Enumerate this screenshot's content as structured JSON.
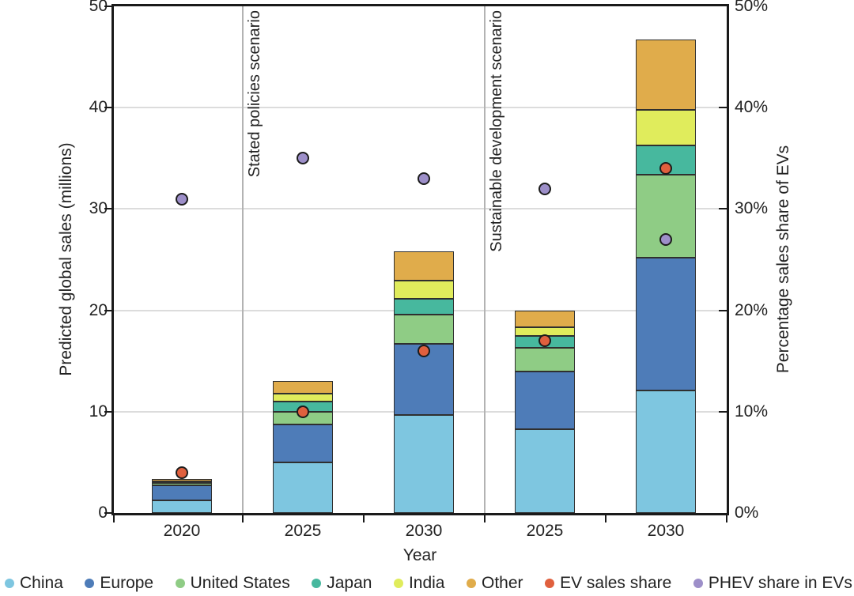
{
  "figure": {
    "left_axis": {
      "title": "Predicted global sales (millions)",
      "tick_labels": [
        "0",
        "10",
        "20",
        "30",
        "40",
        "50"
      ],
      "tick_values": [
        0,
        10,
        20,
        30,
        40,
        50
      ]
    },
    "right_axis": {
      "title": "Percentage sales share of EVs",
      "tick_labels": [
        "0%",
        "10%",
        "20%",
        "30%",
        "40%",
        "50%"
      ],
      "tick_values": [
        0,
        10,
        20,
        30,
        40,
        50
      ]
    },
    "x_axis": {
      "title": "Year",
      "labels": [
        "2020",
        "2025",
        "2030",
        "2025",
        "2030"
      ]
    },
    "scenarios": [
      {
        "label": "Stated policies scenario"
      },
      {
        "label": "Sustainable development scenario"
      }
    ]
  },
  "chart_data": {
    "type": "bar",
    "stacked": true,
    "title": "",
    "xlabel": "Year",
    "ylabel_left": "Predicted global sales (millions)",
    "ylabel_right": "Percentage sales share of EVs",
    "ylim": [
      0,
      50
    ],
    "y2lim_percent": [
      0,
      50
    ],
    "grid": true,
    "legend_position": "bottom",
    "categories": [
      "2020",
      "2025",
      "2030",
      "2025",
      "2030"
    ],
    "scenario_bands": [
      {
        "label": "Stated policies scenario",
        "categories": [
          "2025",
          "2030"
        ]
      },
      {
        "label": "Sustainable development scenario",
        "categories": [
          "2025",
          "2030"
        ]
      }
    ],
    "series": [
      {
        "name": "China",
        "color": "#7EC6E0",
        "values": [
          1.25,
          5.0,
          9.7,
          8.3,
          12.1
        ]
      },
      {
        "name": "Europe",
        "color": "#4E7CB8",
        "values": [
          1.45,
          3.7,
          7.0,
          5.7,
          13.1
        ]
      },
      {
        "name": "United States",
        "color": "#8FCC85",
        "values": [
          0.3,
          1.3,
          2.9,
          2.3,
          8.2
        ]
      },
      {
        "name": "Japan",
        "color": "#47B89E",
        "values": [
          0.05,
          1.0,
          1.5,
          1.2,
          2.9
        ]
      },
      {
        "name": "India",
        "color": "#E0EC5C",
        "values": [
          0.05,
          0.8,
          1.8,
          0.85,
          3.5
        ]
      },
      {
        "name": "Other",
        "color": "#E0AC4B",
        "values": [
          0.25,
          1.2,
          2.9,
          1.6,
          6.9
        ]
      }
    ],
    "points": [
      {
        "name": "EV sales share",
        "color": "#E0603E",
        "values_percent": [
          4,
          10,
          16,
          17,
          34
        ]
      },
      {
        "name": "PHEV share in EVs",
        "color": "#9D8FC9",
        "values_percent": [
          31,
          35,
          33,
          32,
          27
        ]
      }
    ]
  },
  "legend": {
    "items": [
      {
        "label": "China",
        "color": "#7EC6E0"
      },
      {
        "label": "Europe",
        "color": "#4E7CB8"
      },
      {
        "label": "United States",
        "color": "#8FCC85"
      },
      {
        "label": "Japan",
        "color": "#47B89E"
      },
      {
        "label": "India",
        "color": "#E0EC5C"
      },
      {
        "label": "Other",
        "color": "#E0AC4B"
      },
      {
        "label": "EV sales share",
        "color": "#E0603E"
      },
      {
        "label": "PHEV share in EVs",
        "color": "#9D8FC9"
      }
    ]
  },
  "colors": {
    "axis": "#1a1a1a",
    "grid": "#dcdcdc",
    "divider": "#b3b3b3",
    "text": "#222222",
    "background": "#ffffff"
  }
}
